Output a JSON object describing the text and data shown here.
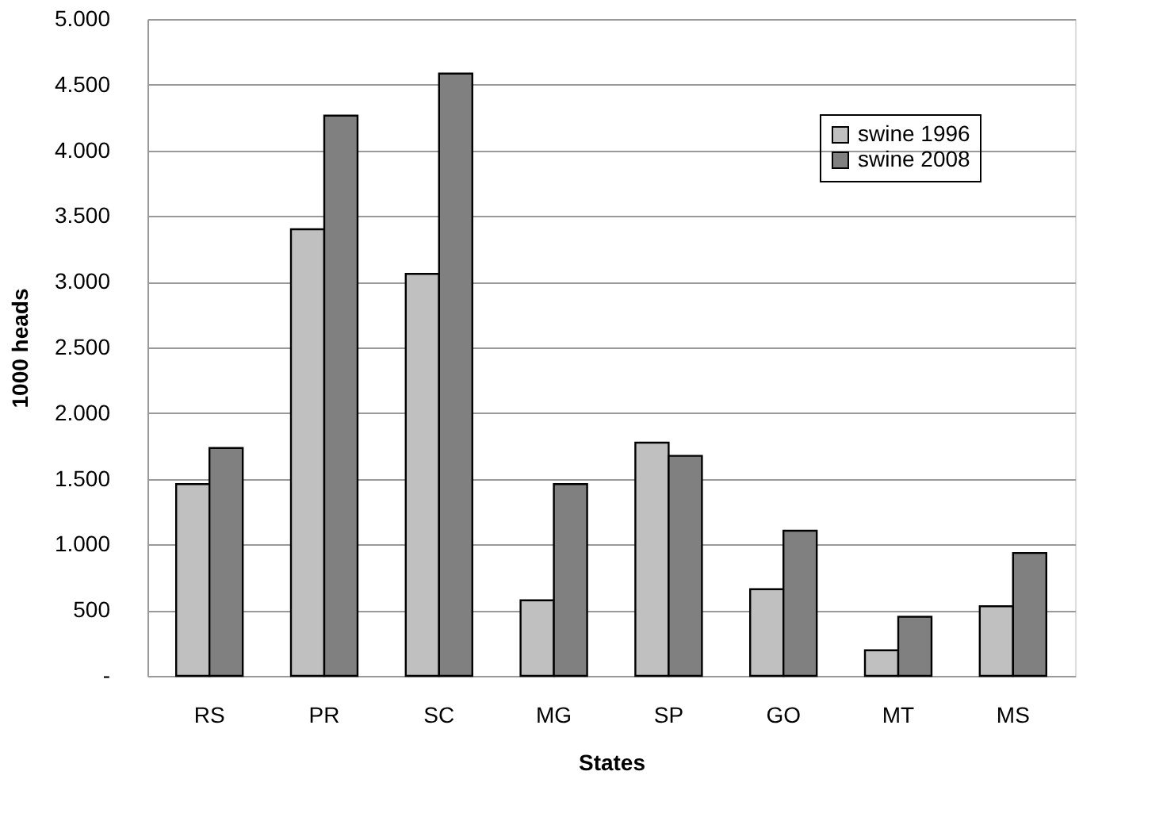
{
  "chart_data": {
    "type": "bar",
    "xlabel": "States",
    "ylabel": "1000 heads",
    "categories": [
      "RS",
      "PR",
      "SC",
      "MG",
      "SP",
      "GO",
      "MT",
      "MS"
    ],
    "series": [
      {
        "name": "swine 1996",
        "color": "#c0c0c0",
        "values": [
          1460,
          3400,
          3060,
          575,
          1775,
          660,
          195,
          530
        ]
      },
      {
        "name": "swine 2008",
        "color": "#808080",
        "values": [
          1735,
          4265,
          4585,
          1460,
          1675,
          1105,
          450,
          935
        ]
      }
    ],
    "ylim": [
      0,
      5000
    ],
    "yticks": [
      {
        "value": 0,
        "label": "-"
      },
      {
        "value": 500,
        "label": "500"
      },
      {
        "value": 1000,
        "label": "1.000"
      },
      {
        "value": 1500,
        "label": "1.500"
      },
      {
        "value": 2000,
        "label": "2.000"
      },
      {
        "value": 2500,
        "label": "2.500"
      },
      {
        "value": 3000,
        "label": "3.000"
      },
      {
        "value": 3500,
        "label": "3.500"
      },
      {
        "value": 4000,
        "label": "4.000"
      },
      {
        "value": 4500,
        "label": "4.500"
      },
      {
        "value": 5000,
        "label": "5.000"
      }
    ],
    "grid": "y",
    "legend": "top right"
  }
}
